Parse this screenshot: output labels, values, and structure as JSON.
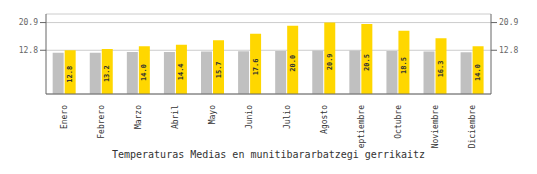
{
  "chart_data": {
    "type": "bar",
    "title": "Temperaturas Medias en munitibararbatzegi gerrikaitz",
    "categories": [
      "Enero",
      "Febrero",
      "Marzo",
      "Abril",
      "Mayo",
      "Junio",
      "Julio",
      "Agosto",
      "Septiembre",
      "Octubre",
      "Noviembre",
      "Diciembre"
    ],
    "series": [
      {
        "color": "#C0C0C0",
        "values": [
          12.1,
          12.1,
          12.3,
          12.3,
          12.4,
          12.5,
          12.6,
          12.7,
          12.7,
          12.6,
          12.4,
          12.2
        ]
      },
      {
        "color": "#FFD700",
        "data_labels": true,
        "values": [
          12.8,
          13.2,
          14.0,
          14.4,
          15.7,
          17.6,
          20.0,
          20.9,
          20.5,
          18.5,
          16.3,
          14.0
        ],
        "value_labels": [
          "12.8",
          "13.2",
          "14.0",
          "14.4",
          "15.7",
          "17.6",
          "20.0",
          "20.9",
          "20.5",
          "18.5",
          "16.3",
          "14.0"
        ]
      }
    ],
    "ylim": [
      0,
      23.408
    ],
    "yticks": [
      12.8,
      20.9
    ],
    "y2lim": [
      0,
      23.408
    ],
    "y2ticks": [
      12.8,
      20.9
    ],
    "grid": true
  }
}
